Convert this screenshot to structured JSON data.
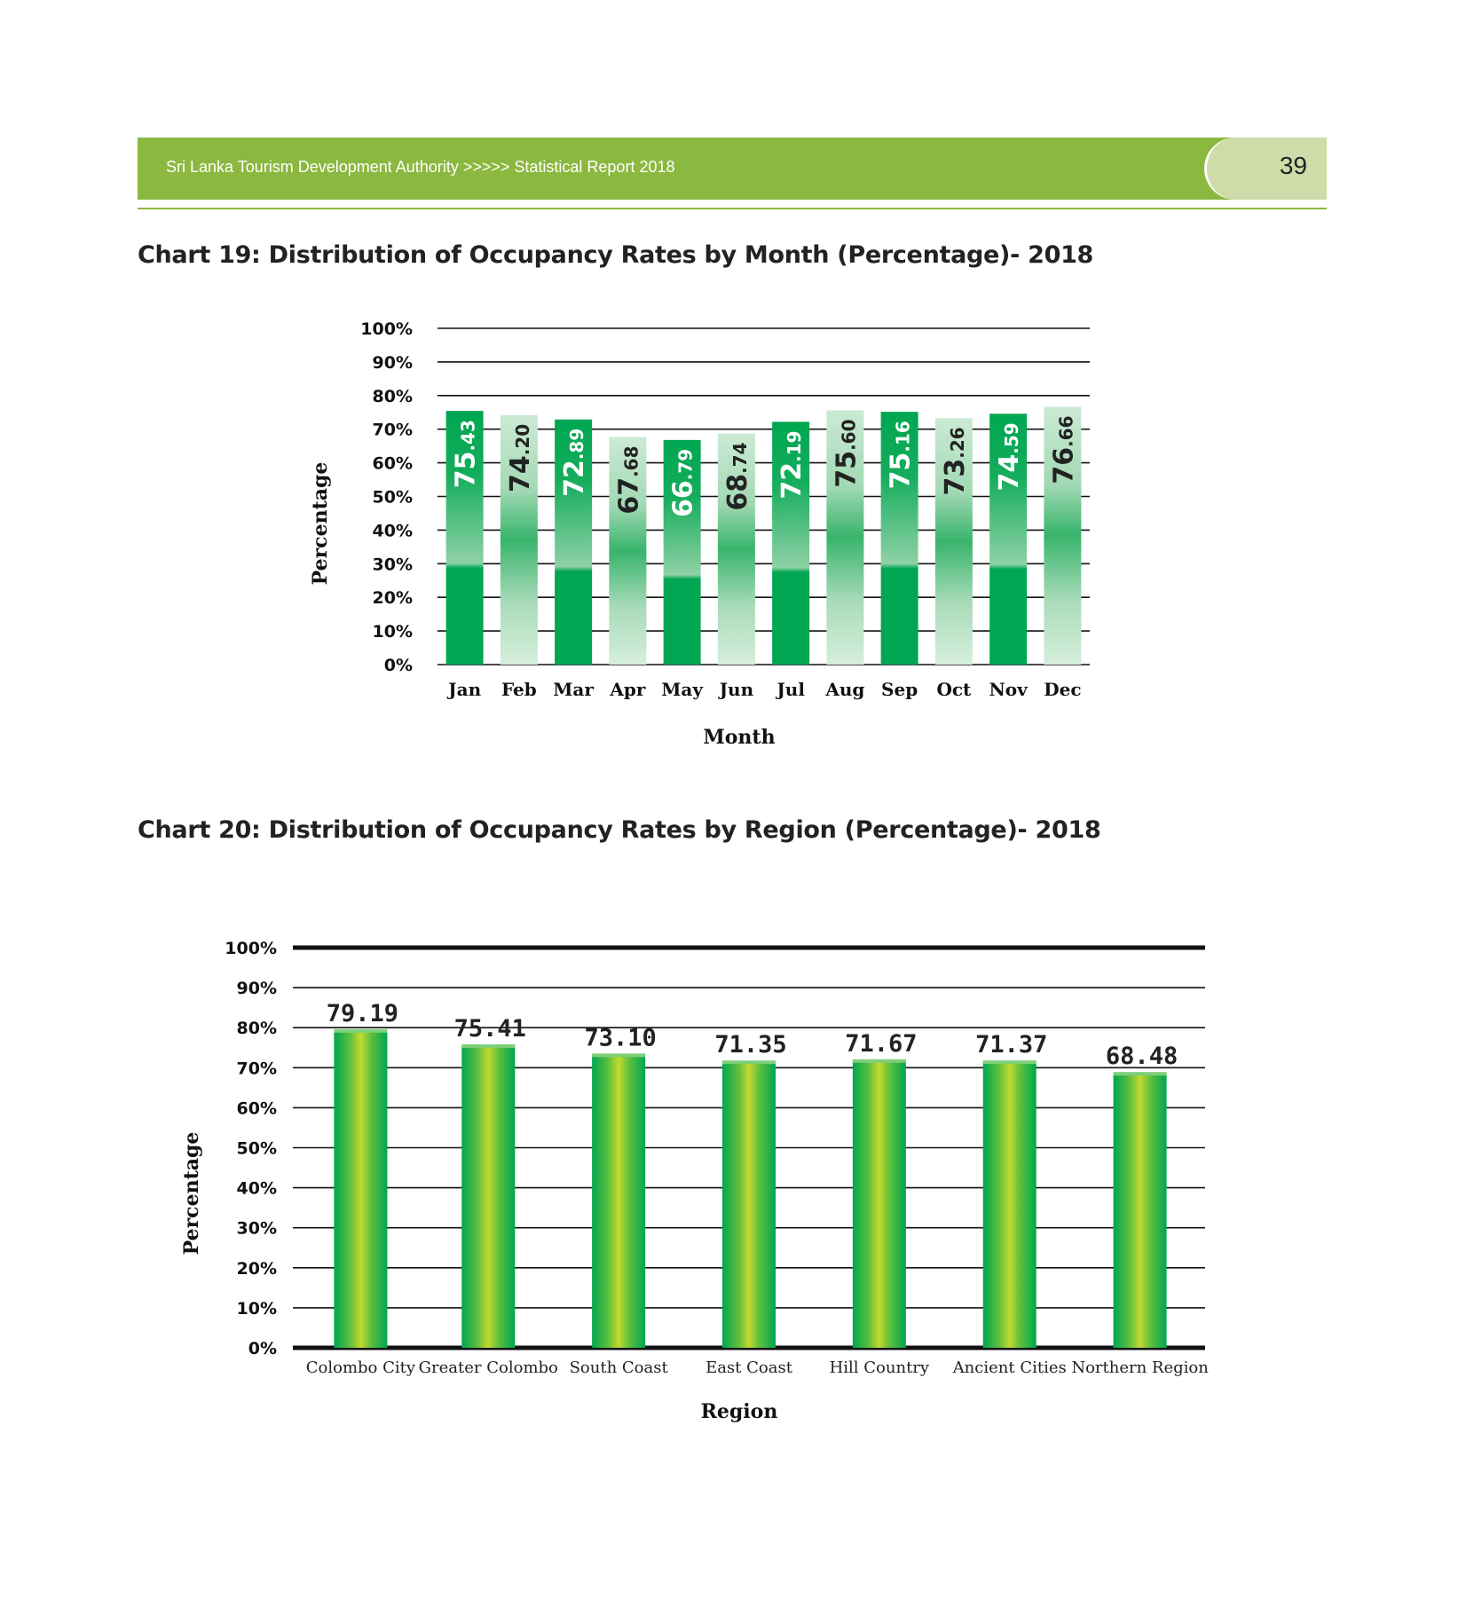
{
  "header": {
    "text": "Sri Lanka Tourism Development Authority >>>>> Statistical Report 2018",
    "page_number": "39",
    "band_color": "#8bb83f",
    "tab_color": "#cfdcaa"
  },
  "chart_data": [
    {
      "type": "bar",
      "title": "Chart 19: Distribution of Occupancy Rates by Month (Percentage)- 2018",
      "xlabel": "Month",
      "ylabel": "Percentage",
      "categories": [
        "Jan",
        "Feb",
        "Mar",
        "Apr",
        "May",
        "Jun",
        "Jul",
        "Aug",
        "Sep",
        "Oct",
        "Nov",
        "Dec"
      ],
      "values": [
        75.43,
        74.2,
        72.89,
        67.68,
        66.79,
        68.74,
        72.19,
        75.6,
        75.16,
        73.26,
        74.59,
        76.66
      ],
      "value_labels": [
        "75.43",
        "74.20",
        "72.89",
        "67.68",
        "66.79",
        "68.74",
        "72.19",
        "75.60",
        "75.16",
        "73.26",
        "74.59",
        "76.66"
      ],
      "ylim": [
        0,
        100
      ],
      "yticks": [
        "0%",
        "10%",
        "20%",
        "30%",
        "40%",
        "50%",
        "60%",
        "70%",
        "80%",
        "90%",
        "100%"
      ],
      "grid": true,
      "colors": {
        "dark": "#00a651",
        "light": "#c8e6cf"
      }
    },
    {
      "type": "bar",
      "title": "Chart 20: Distribution of Occupancy Rates by Region (Percentage)- 2018",
      "xlabel": "Region",
      "ylabel": "Percentage",
      "categories": [
        "Colombo City",
        "Greater Colombo",
        "South Coast",
        "East Coast",
        "Hill Country",
        "Ancient Cities",
        "Northern Region"
      ],
      "values": [
        79.19,
        75.41,
        73.1,
        71.35,
        71.67,
        71.37,
        68.48
      ],
      "value_labels": [
        "79.19",
        "75.41",
        "73.10",
        "71.35",
        "71.67",
        "71.37",
        "68.48"
      ],
      "ylim": [
        0,
        100
      ],
      "yticks": [
        "0%",
        "10%",
        "20%",
        "30%",
        "40%",
        "50%",
        "60%",
        "70%",
        "80%",
        "90%",
        "100%"
      ],
      "grid": true,
      "colors": {
        "edge": "#00a651",
        "center": "#b5d334"
      }
    }
  ]
}
